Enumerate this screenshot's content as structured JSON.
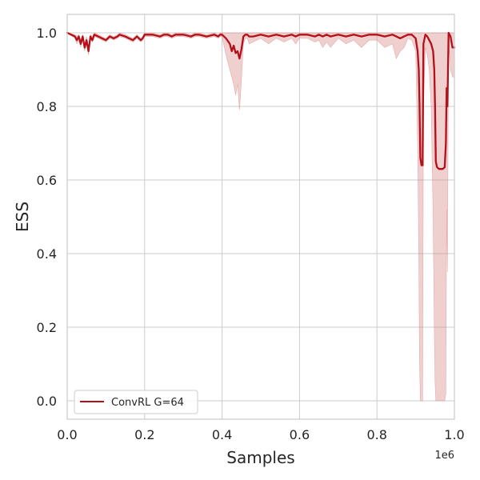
{
  "chart_data": {
    "type": "line",
    "title": "",
    "xlabel": "Samples",
    "ylabel": "ESS",
    "x_offset_label": "1e6",
    "xlim": [
      0,
      1000000
    ],
    "ylim": [
      -0.05,
      1.05
    ],
    "xticks": [
      0,
      200000,
      400000,
      600000,
      800000,
      1000000
    ],
    "xtick_labels": [
      "0.0",
      "0.2",
      "0.4",
      "0.6",
      "0.8",
      "1.0"
    ],
    "yticks": [
      0,
      0.2,
      0.4,
      0.6,
      0.8,
      1.0
    ],
    "ytick_labels": [
      "0.0",
      "0.2",
      "0.4",
      "0.6",
      "0.8",
      "1.0"
    ],
    "grid": true,
    "legend_position": "lower-left",
    "series": [
      {
        "name": "ConvRL G=64",
        "color": "#b3101a",
        "band_color": "#d98888",
        "x": [
          0,
          20000,
          25000,
          30000,
          35000,
          40000,
          45000,
          50000,
          55000,
          60000,
          65000,
          70000,
          80000,
          90000,
          100000,
          110000,
          120000,
          130000,
          135000,
          150000,
          160000,
          170000,
          180000,
          190000,
          195000,
          200000,
          210000,
          220000,
          240000,
          250000,
          260000,
          270000,
          280000,
          300000,
          320000,
          330000,
          340000,
          360000,
          380000,
          390000,
          395000,
          400000,
          410000,
          420000,
          425000,
          430000,
          435000,
          440000,
          445000,
          450000,
          455000,
          460000,
          465000,
          470000,
          480000,
          500000,
          520000,
          540000,
          560000,
          580000,
          590000,
          600000,
          620000,
          640000,
          650000,
          660000,
          670000,
          680000,
          700000,
          720000,
          740000,
          760000,
          780000,
          800000,
          820000,
          840000,
          850000,
          860000,
          870000,
          880000,
          890000,
          900000,
          905000,
          908000,
          910000,
          912000,
          915000,
          918000,
          920000,
          925000,
          930000,
          935000,
          940000,
          945000,
          948000,
          950000,
          952000,
          955000,
          960000,
          970000,
          975000,
          978000,
          980000,
          982000,
          985000,
          990000,
          995000,
          1000000
        ],
        "y": [
          1.0,
          0.99,
          0.98,
          0.99,
          0.97,
          0.99,
          0.96,
          0.98,
          0.95,
          0.99,
          0.98,
          0.995,
          0.99,
          0.985,
          0.98,
          0.99,
          0.985,
          0.99,
          0.995,
          0.99,
          0.985,
          0.98,
          0.99,
          0.98,
          0.985,
          0.995,
          0.995,
          0.995,
          0.99,
          0.995,
          0.995,
          0.99,
          0.995,
          0.995,
          0.99,
          0.995,
          0.995,
          0.99,
          0.995,
          0.99,
          0.995,
          0.995,
          0.985,
          0.97,
          0.95,
          0.965,
          0.945,
          0.95,
          0.93,
          0.955,
          0.99,
          0.995,
          0.995,
          0.99,
          0.99,
          0.995,
          0.99,
          0.995,
          0.99,
          0.995,
          0.99,
          0.995,
          0.995,
          0.99,
          0.995,
          0.99,
          0.995,
          0.99,
          0.995,
          0.99,
          0.995,
          0.99,
          0.995,
          0.995,
          0.99,
          0.995,
          0.99,
          0.985,
          0.99,
          0.995,
          0.995,
          0.985,
          0.95,
          0.9,
          0.8,
          0.66,
          0.64,
          0.64,
          0.97,
          0.995,
          0.99,
          0.98,
          0.97,
          0.95,
          0.9,
          0.8,
          0.65,
          0.635,
          0.63,
          0.63,
          0.635,
          0.7,
          0.85,
          0.8,
          1.0,
          0.99,
          0.96,
          0.96
        ],
        "lower": [
          1.0,
          0.985,
          0.97,
          0.98,
          0.96,
          0.985,
          0.95,
          0.97,
          0.94,
          0.985,
          0.975,
          0.99,
          0.985,
          0.98,
          0.975,
          0.985,
          0.98,
          0.985,
          0.99,
          0.985,
          0.98,
          0.975,
          0.985,
          0.975,
          0.98,
          0.99,
          0.99,
          0.99,
          0.985,
          0.99,
          0.99,
          0.985,
          0.99,
          0.99,
          0.985,
          0.99,
          0.99,
          0.985,
          0.99,
          0.985,
          0.99,
          0.99,
          0.94,
          0.9,
          0.88,
          0.86,
          0.83,
          0.86,
          0.79,
          0.87,
          0.97,
          0.985,
          0.985,
          0.97,
          0.975,
          0.985,
          0.97,
          0.985,
          0.975,
          0.985,
          0.97,
          0.985,
          0.985,
          0.975,
          0.98,
          0.96,
          0.975,
          0.96,
          0.985,
          0.97,
          0.98,
          0.96,
          0.98,
          0.98,
          0.96,
          0.97,
          0.93,
          0.95,
          0.96,
          0.985,
          0.98,
          0.95,
          0.7,
          0.4,
          0.1,
          0.0,
          0.0,
          0.0,
          0.8,
          0.96,
          0.94,
          0.9,
          0.8,
          0.5,
          0.2,
          0.05,
          0.0,
          0.0,
          0.0,
          0.0,
          0.0,
          0.02,
          0.52,
          0.35,
          0.98,
          0.9,
          0.88,
          0.88
        ],
        "upper": [
          1.0,
          0.995,
          0.99,
          0.995,
          0.98,
          0.995,
          0.97,
          0.99,
          0.96,
          0.995,
          0.99,
          1.0,
          0.995,
          0.99,
          0.985,
          0.995,
          0.99,
          0.995,
          1.0,
          0.995,
          0.99,
          0.985,
          0.995,
          0.985,
          0.99,
          1.0,
          1.0,
          1.0,
          0.995,
          1.0,
          1.0,
          0.995,
          1.0,
          1.0,
          0.995,
          1.0,
          1.0,
          0.995,
          1.0,
          0.995,
          1.0,
          1.0,
          1.0,
          1.0,
          1.0,
          1.0,
          1.0,
          1.0,
          1.0,
          1.0,
          1.0,
          1.0,
          1.0,
          1.0,
          1.0,
          1.0,
          1.0,
          1.0,
          1.0,
          1.0,
          1.0,
          1.0,
          1.0,
          1.0,
          1.0,
          1.0,
          1.0,
          1.0,
          1.0,
          1.0,
          1.0,
          1.0,
          1.0,
          1.0,
          1.0,
          1.0,
          1.0,
          1.0,
          1.0,
          1.0,
          1.0,
          1.0,
          1.0,
          1.0,
          1.0,
          1.0,
          1.0,
          1.0,
          1.0,
          1.0,
          1.0,
          1.0,
          1.0,
          1.0,
          1.0,
          1.0,
          1.0,
          1.0,
          1.0,
          1.0,
          1.0,
          1.0,
          1.0,
          1.0,
          1.0,
          1.0,
          1.0,
          1.0
        ]
      }
    ]
  }
}
